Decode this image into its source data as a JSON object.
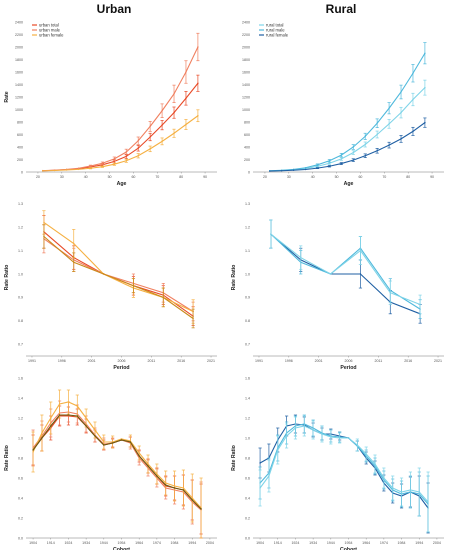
{
  "titles": {
    "left": "Urban",
    "right": "Rural"
  },
  "chart_data": [
    {
      "type": "line",
      "panel": "urban-age",
      "xlabel": "Age",
      "ylabel": "Rate",
      "xlim": [
        15,
        95
      ],
      "ylim": [
        0,
        2400
      ],
      "xticks": [
        20,
        30,
        40,
        50,
        60,
        70,
        80,
        90
      ],
      "yticks": [
        0,
        200,
        400,
        600,
        800,
        1000,
        1200,
        1400,
        1600,
        1800,
        2000,
        2200,
        2400
      ],
      "legend": "top-left",
      "x": [
        22,
        27,
        32,
        37,
        42,
        47,
        52,
        57,
        62,
        67,
        72,
        77,
        82,
        87
      ],
      "series": [
        {
          "name": "urban total",
          "color": "#e84a27",
          "values": [
            20,
            28,
            38,
            52,
            80,
            115,
            170,
            250,
            380,
            560,
            750,
            950,
            1180,
            1420
          ],
          "err": [
            0,
            0,
            0,
            0,
            12,
            18,
            25,
            35,
            45,
            60,
            75,
            90,
            110,
            130
          ]
        },
        {
          "name": "urban male",
          "color": "#f08060",
          "values": [
            22,
            30,
            42,
            60,
            95,
            140,
            210,
            320,
            500,
            730,
            980,
            1250,
            1600,
            2000
          ],
          "err": [
            0,
            0,
            0,
            0,
            15,
            20,
            30,
            45,
            60,
            80,
            110,
            140,
            180,
            220
          ]
        },
        {
          "name": "urban female",
          "color": "#f5b042",
          "values": [
            18,
            24,
            32,
            42,
            60,
            85,
            125,
            180,
            260,
            370,
            490,
            620,
            760,
            900
          ],
          "err": [
            0,
            0,
            0,
            0,
            10,
            12,
            18,
            25,
            35,
            45,
            55,
            65,
            80,
            95
          ]
        }
      ]
    },
    {
      "type": "line",
      "panel": "rural-age",
      "xlabel": "Age",
      "ylabel": "",
      "xlim": [
        15,
        95
      ],
      "ylim": [
        0,
        2400
      ],
      "xticks": [
        20,
        30,
        40,
        50,
        60,
        70,
        80,
        90
      ],
      "yticks": [
        0,
        200,
        400,
        600,
        800,
        1000,
        1200,
        1400,
        1600,
        1800,
        2000,
        2200,
        2400
      ],
      "legend": "top-left",
      "x": [
        22,
        27,
        32,
        37,
        42,
        47,
        52,
        57,
        62,
        67,
        72,
        77,
        82,
        87
      ],
      "series": [
        {
          "name": "rural total",
          "color": "#7fd4e8",
          "values": [
            18,
            25,
            36,
            55,
            90,
            140,
            210,
            310,
            440,
            600,
            770,
            950,
            1160,
            1350
          ],
          "err": [
            0,
            0,
            0,
            0,
            12,
            16,
            22,
            30,
            40,
            55,
            70,
            85,
            100,
            120
          ]
        },
        {
          "name": "rural male",
          "color": "#4fb9dc",
          "values": [
            20,
            28,
            42,
            68,
            115,
            180,
            270,
            400,
            570,
            780,
            1020,
            1280,
            1580,
            1900
          ],
          "err": [
            0,
            0,
            0,
            0,
            15,
            20,
            28,
            38,
            50,
            70,
            90,
            110,
            140,
            170
          ]
        },
        {
          "name": "rural female",
          "color": "#1f5fa3",
          "values": [
            15,
            20,
            28,
            40,
            62,
            92,
            135,
            190,
            260,
            340,
            430,
            530,
            650,
            790
          ],
          "err": [
            0,
            0,
            0,
            0,
            8,
            12,
            16,
            22,
            30,
            38,
            46,
            55,
            65,
            75
          ]
        }
      ]
    },
    {
      "type": "line",
      "panel": "urban-period",
      "xlabel": "Period",
      "ylabel": "Rate Ratio",
      "xlim": [
        1990,
        2022
      ],
      "ylim": [
        0.65,
        1.32
      ],
      "xticks": [
        1991,
        1996,
        2001,
        2006,
        2011,
        2016,
        2021
      ],
      "yticks": [
        0.7,
        0.8,
        0.9,
        1.0,
        1.1,
        1.2,
        1.3
      ],
      "x": [
        1993,
        1998,
        2003,
        2008,
        2013,
        2018
      ],
      "series": [
        {
          "color": "#e84a27",
          "values": [
            1.18,
            1.07,
            1.0,
            0.95,
            0.91,
            0.82
          ],
          "err": [
            0.07,
            0.05,
            0,
            0.04,
            0.04,
            0.04
          ]
        },
        {
          "color": "#f08060",
          "values": [
            1.15,
            1.06,
            1.0,
            0.96,
            0.92,
            0.84
          ],
          "err": [
            0.06,
            0.05,
            0,
            0.04,
            0.04,
            0.04
          ]
        },
        {
          "color": "#f5b042",
          "values": [
            1.22,
            1.13,
            1.0,
            0.94,
            0.9,
            0.84
          ],
          "err": [
            0.05,
            0.06,
            0,
            0.04,
            0.04,
            0.05
          ]
        },
        {
          "color": "#c98a1a",
          "values": [
            1.16,
            1.05,
            1.0,
            0.95,
            0.9,
            0.81
          ],
          "err": [
            0.05,
            0.04,
            0,
            0.03,
            0.04,
            0.04
          ]
        }
      ]
    },
    {
      "type": "line",
      "panel": "rural-period",
      "xlabel": "Period",
      "ylabel": "Rate Ratio",
      "xlim": [
        1990,
        2022
      ],
      "ylim": [
        0.65,
        1.32
      ],
      "xticks": [
        1991,
        1996,
        2001,
        2006,
        2011,
        2016,
        2021
      ],
      "yticks": [
        0.7,
        0.8,
        0.9,
        1.0,
        1.1,
        1.2,
        1.3
      ],
      "x": [
        1993,
        1998,
        2003,
        2008,
        2013,
        2018
      ],
      "series": [
        {
          "color": "#1f5fa3",
          "values": [
            1.17,
            1.06,
            1.0,
            1.0,
            0.88,
            0.83
          ],
          "err": [
            0.06,
            0.05,
            0,
            0.06,
            0.05,
            0.04
          ]
        },
        {
          "color": "#4fb9dc",
          "values": [
            1.17,
            1.05,
            1.0,
            1.11,
            0.93,
            0.85
          ],
          "err": [
            0.06,
            0.05,
            0,
            0.05,
            0.05,
            0.04
          ]
        },
        {
          "color": "#7fd4e8",
          "values": [
            1.17,
            1.07,
            1.0,
            1.1,
            0.92,
            0.87
          ],
          "err": [
            0.06,
            0.05,
            0,
            0.06,
            0.05,
            0.04
          ]
        }
      ]
    },
    {
      "type": "line",
      "panel": "urban-cohort",
      "xlabel": "Cohort",
      "ylabel": "Rate Ratio",
      "xlim": [
        1900,
        2008
      ],
      "ylim": [
        0,
        1.6
      ],
      "xticks": [
        1904,
        1914,
        1924,
        1934,
        1944,
        1954,
        1964,
        1974,
        1984,
        1994,
        2004
      ],
      "yticks": [
        0.0,
        0.2,
        0.4,
        0.6,
        0.8,
        1.0,
        1.2,
        1.4,
        1.6
      ],
      "x": [
        1904,
        1909,
        1914,
        1919,
        1924,
        1929,
        1934,
        1939,
        1944,
        1949,
        1954,
        1959,
        1964,
        1969,
        1974,
        1979,
        1984,
        1989,
        1994,
        1999
      ],
      "series": [
        {
          "color": "#e84a27",
          "values": [
            0.88,
            1.0,
            1.1,
            1.22,
            1.22,
            1.21,
            1.12,
            1.02,
            0.93,
            0.95,
            0.98,
            0.96,
            0.82,
            0.72,
            0.62,
            0.52,
            0.5,
            0.48,
            0.38,
            0.29
          ],
          "err": [
            0.15,
            0.13,
            0.12,
            0.1,
            0.09,
            0.08,
            0.07,
            0.06,
            0.05,
            0.04,
            0,
            0.05,
            0.06,
            0.07,
            0.08,
            0.1,
            0.12,
            0.15,
            0.2,
            0.25
          ]
        },
        {
          "color": "#f08060",
          "values": [
            0.9,
            1.02,
            1.15,
            1.25,
            1.26,
            1.24,
            1.14,
            1.03,
            0.94,
            0.95,
            0.98,
            0.95,
            0.8,
            0.7,
            0.6,
            0.5,
            0.48,
            0.46,
            0.36,
            0.28
          ],
          "err": [
            0.18,
            0.15,
            0.14,
            0.12,
            0.1,
            0.09,
            0.08,
            0.07,
            0.06,
            0.05,
            0,
            0.06,
            0.07,
            0.08,
            0.09,
            0.11,
            0.14,
            0.17,
            0.22,
            0.28
          ]
        },
        {
          "color": "#f5b042",
          "values": [
            0.86,
            1.05,
            1.2,
            1.34,
            1.36,
            1.32,
            1.2,
            1.08,
            0.96,
            0.96,
            0.99,
            0.97,
            0.85,
            0.74,
            0.64,
            0.55,
            0.52,
            0.5,
            0.4,
            0.3
          ],
          "err": [
            0.2,
            0.18,
            0.16,
            0.14,
            0.12,
            0.11,
            0.09,
            0.08,
            0.07,
            0.06,
            0,
            0.06,
            0.07,
            0.09,
            0.1,
            0.12,
            0.15,
            0.18,
            0.24,
            0.3
          ]
        },
        {
          "color": "#6b5a10",
          "values": [
            0.88,
            1.0,
            1.12,
            1.23,
            1.23,
            1.22,
            1.12,
            1.02,
            0.93,
            0.95,
            0.98,
            0.96,
            0.82,
            0.72,
            0.62,
            0.53,
            0.5,
            0.48,
            0.38,
            0.29
          ],
          "err": [
            0,
            0,
            0,
            0,
            0,
            0,
            0,
            0,
            0,
            0,
            0,
            0,
            0,
            0,
            0,
            0,
            0,
            0,
            0,
            0
          ]
        }
      ]
    },
    {
      "type": "line",
      "panel": "rural-cohort",
      "xlabel": "Cohort",
      "ylabel": "Rate Ratio",
      "xlim": [
        1900,
        2008
      ],
      "ylim": [
        0,
        1.6
      ],
      "xticks": [
        1904,
        1914,
        1924,
        1934,
        1944,
        1954,
        1964,
        1974,
        1984,
        1994,
        2004
      ],
      "yticks": [
        0.0,
        0.2,
        0.4,
        0.6,
        0.8,
        1.0,
        1.2,
        1.4,
        1.6
      ],
      "x": [
        1904,
        1909,
        1914,
        1919,
        1924,
        1929,
        1934,
        1939,
        1944,
        1949,
        1954,
        1959,
        1964,
        1969,
        1974,
        1979,
        1984,
        1989,
        1994,
        1999
      ],
      "series": [
        {
          "color": "#1f5fa3",
          "values": [
            0.75,
            0.8,
            0.98,
            1.12,
            1.14,
            1.13,
            1.08,
            1.04,
            1.04,
            1.02,
            1.0,
            0.92,
            0.8,
            0.7,
            0.55,
            0.45,
            0.42,
            0.46,
            0.42,
            0.3
          ],
          "err": [
            0.15,
            0.14,
            0.12,
            0.1,
            0.09,
            0.08,
            0.07,
            0.06,
            0.05,
            0.04,
            0,
            0.05,
            0.06,
            0.07,
            0.08,
            0.1,
            0.12,
            0.15,
            0.2,
            0.25
          ]
        },
        {
          "color": "#4fb9dc",
          "values": [
            0.55,
            0.65,
            0.9,
            1.05,
            1.12,
            1.14,
            1.1,
            1.05,
            1.02,
            1.01,
            1.0,
            0.92,
            0.82,
            0.72,
            0.58,
            0.48,
            0.44,
            0.46,
            0.44,
            0.34
          ],
          "err": [
            0.16,
            0.15,
            0.13,
            0.11,
            0.1,
            0.09,
            0.08,
            0.07,
            0.06,
            0.05,
            0,
            0.05,
            0.06,
            0.08,
            0.09,
            0.11,
            0.13,
            0.16,
            0.22,
            0.28
          ]
        },
        {
          "color": "#7fd4e8",
          "values": [
            0.5,
            0.62,
            0.88,
            1.02,
            1.1,
            1.12,
            1.08,
            1.04,
            1.01,
            1.0,
            1.0,
            0.93,
            0.84,
            0.74,
            0.6,
            0.5,
            0.46,
            0.48,
            0.46,
            0.36
          ],
          "err": [
            0.18,
            0.16,
            0.14,
            0.12,
            0.11,
            0.1,
            0.09,
            0.08,
            0.07,
            0.05,
            0,
            0.06,
            0.07,
            0.09,
            0.1,
            0.12,
            0.14,
            0.18,
            0.24,
            0.3
          ]
        }
      ]
    }
  ]
}
